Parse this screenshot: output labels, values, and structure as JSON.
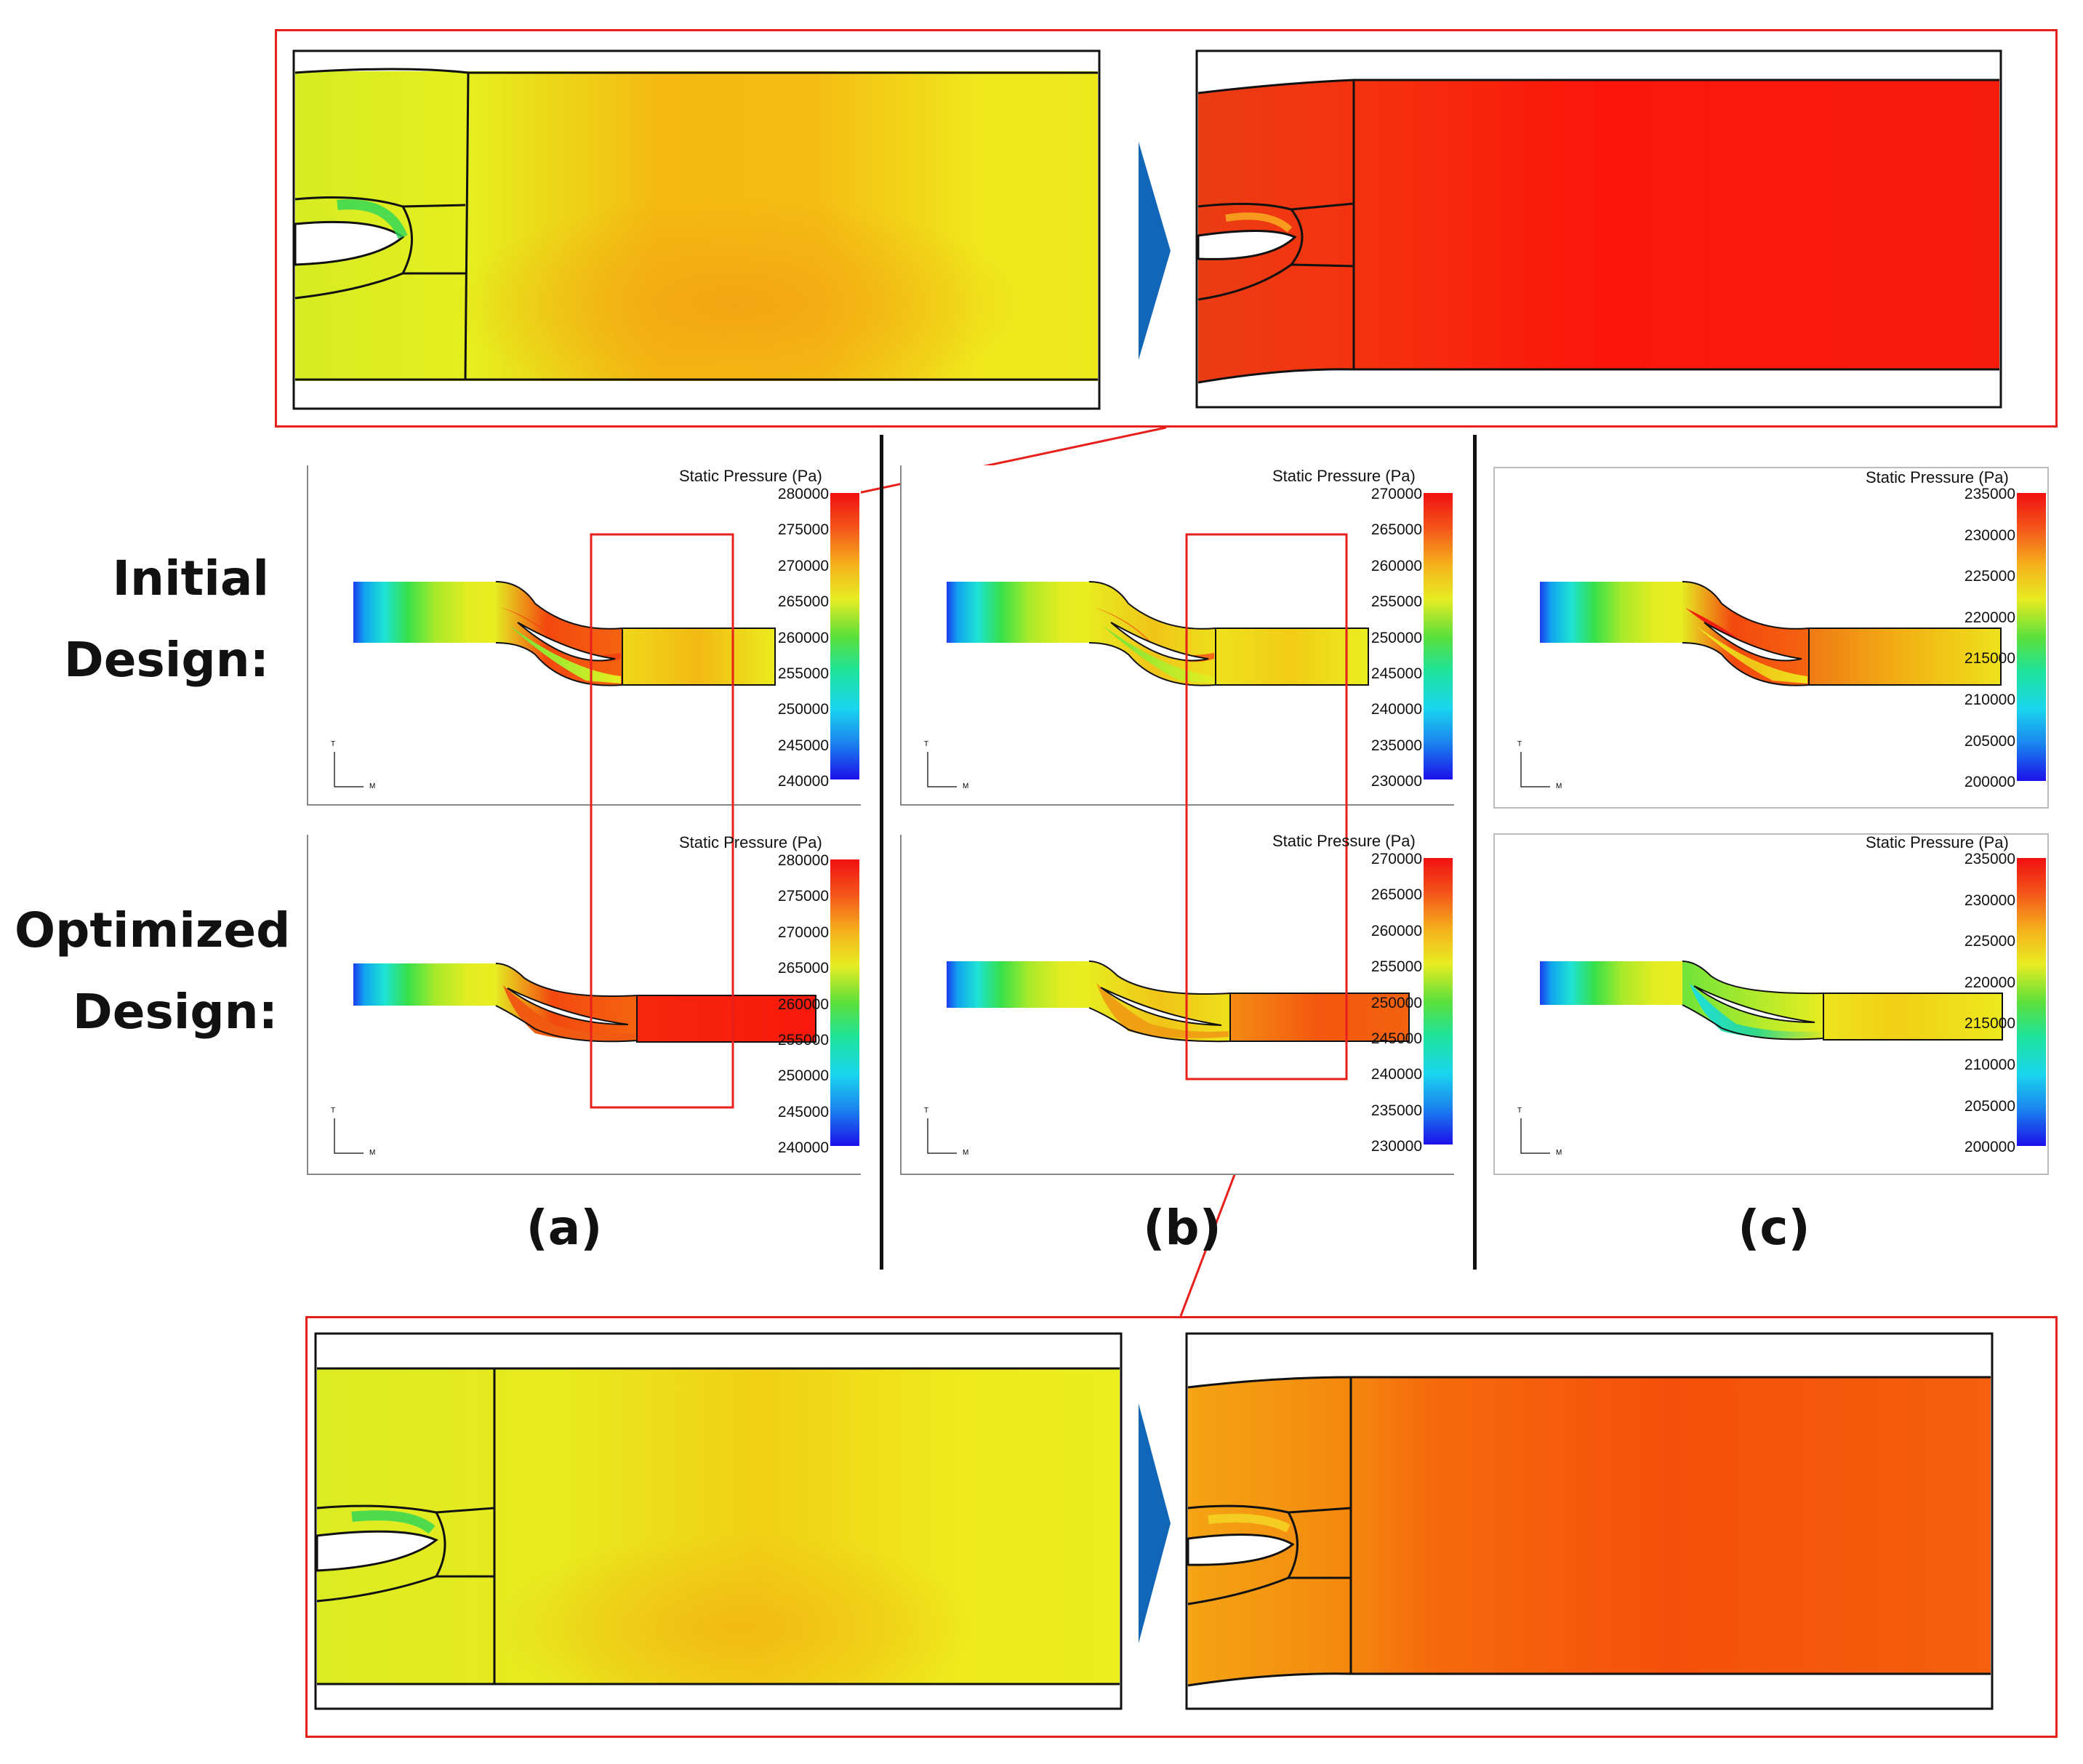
{
  "row_labels": {
    "initial": [
      "Initial",
      "Design:"
    ],
    "optimized": [
      "Optimized",
      "Design:"
    ]
  },
  "column_labels": [
    "(a)",
    "(b)",
    "(c)"
  ],
  "colorbar_title": "Static Pressure (Pa)",
  "axis_glyphs": {
    "vertical": "T",
    "horizontal": "M"
  },
  "colorbars": {
    "a": [
      "280000",
      "275000",
      "270000",
      "265000",
      "260000",
      "255000",
      "250000",
      "245000",
      "240000"
    ],
    "b": [
      "270000",
      "265000",
      "260000",
      "255000",
      "250000",
      "245000",
      "240000",
      "235000",
      "230000"
    ],
    "c": [
      "235000",
      "230000",
      "225000",
      "220000",
      "215000",
      "210000",
      "205000",
      "200000"
    ]
  },
  "colors": {
    "highlight_frame": "#e8201c",
    "arrow": "#1266b8",
    "divider": "#111111"
  }
}
